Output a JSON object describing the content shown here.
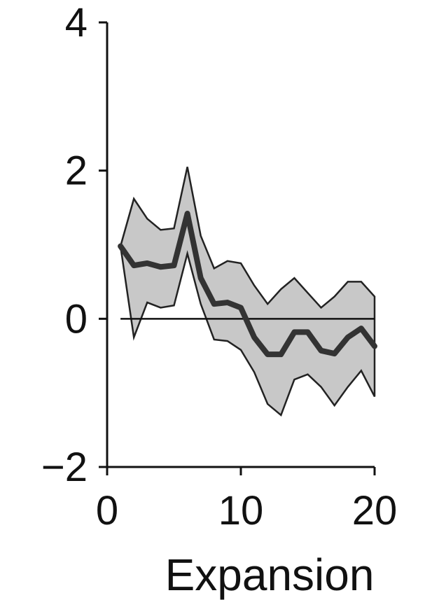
{
  "chart_data": {
    "type": "line",
    "xlabel": "Expansion",
    "ylabel": "",
    "xlim": [
      0,
      20
    ],
    "ylim": [
      -2,
      4
    ],
    "x_ticks": [
      {
        "value": 0,
        "label": "0"
      },
      {
        "value": 10,
        "label": "10"
      },
      {
        "value": 20,
        "label": "20"
      }
    ],
    "y_ticks": [
      {
        "value": 4,
        "label": "4"
      },
      {
        "value": 2,
        "label": "2"
      },
      {
        "value": 0,
        "label": "0"
      },
      {
        "value": -2,
        "label": "−2"
      }
    ],
    "reference_line": {
      "y": 0
    },
    "x": [
      1,
      2,
      3,
      4,
      5,
      6,
      7,
      8,
      9,
      10,
      11,
      12,
      13,
      14,
      15,
      16,
      17,
      18,
      19,
      20
    ],
    "series": [
      {
        "values": [
          0.98,
          0.72,
          0.75,
          0.7,
          0.72,
          1.42,
          0.55,
          0.2,
          0.22,
          0.15,
          -0.25,
          -0.48,
          -0.48,
          -0.18,
          -0.18,
          -0.43,
          -0.47,
          -0.25,
          -0.13,
          -0.37
        ],
        "lower": [
          0.98,
          -0.25,
          0.22,
          0.15,
          0.18,
          0.88,
          0.2,
          -0.28,
          -0.3,
          -0.42,
          -0.72,
          -1.15,
          -1.3,
          -0.82,
          -0.75,
          -0.92,
          -1.17,
          -0.92,
          -0.7,
          -1.05
        ],
        "upper": [
          0.98,
          1.62,
          1.35,
          1.2,
          1.22,
          2.05,
          1.12,
          0.68,
          0.78,
          0.75,
          0.45,
          0.2,
          0.4,
          0.55,
          0.35,
          0.15,
          0.3,
          0.5,
          0.5,
          0.3
        ]
      }
    ],
    "colors": {
      "band": "#c8c8c8",
      "mean": "#333333",
      "axis": "#111111"
    }
  }
}
